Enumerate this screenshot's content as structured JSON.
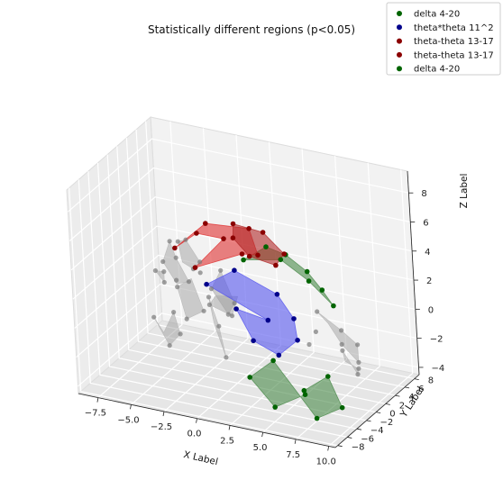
{
  "chart_data": {
    "type": "scatter",
    "title": "Statistically different regions (p<0.05)",
    "xlabel": "X Label",
    "ylabel": "Y Label",
    "zlabel": "Z Label",
    "xticks": [
      "−7.5",
      "−5.0",
      "−2.5",
      "0.0",
      "2.5",
      "5.0",
      "7.5",
      "10.0"
    ],
    "yticks": [
      "−8",
      "−6",
      "−4",
      "−2",
      "0",
      "2",
      "4",
      "6",
      "8"
    ],
    "zticks": [
      "−4",
      "−2",
      "0",
      "2",
      "4",
      "6",
      "8"
    ],
    "xlim": [
      -9,
      10.5
    ],
    "ylim": [
      -8.5,
      9
    ],
    "zlim": [
      -4.5,
      9.5
    ],
    "grid": true,
    "legend_position": "top-right",
    "series": [
      {
        "name": "delta 4-20",
        "color": "#006400",
        "fill": "#4a8a4a",
        "points": [
          [
            3.5,
            -6.5,
            6.5
          ],
          [
            4.7,
            -5.0,
            7.2
          ],
          [
            5.6,
            -3.5,
            6.4
          ],
          [
            6.6,
            -2.0,
            5.0
          ],
          [
            7.2,
            -0.8,
            3.5
          ],
          [
            7.5,
            0.5,
            2.1
          ],
          [
            6.3,
            -1.0,
            4.0
          ],
          [
            5.0,
            -3.0,
            5.8
          ]
        ]
      },
      {
        "name": "theta*theta 11^2",
        "color": "#00008b",
        "fill": "#5555ee",
        "points": [
          [
            -0.8,
            -3.0,
            3.0
          ],
          [
            1.2,
            -2.5,
            4.2
          ],
          [
            4.0,
            -1.5,
            2.8
          ],
          [
            4.6,
            0.0,
            0.8
          ],
          [
            4.4,
            1.0,
            -1.0
          ],
          [
            2.7,
            1.5,
            -2.5
          ],
          [
            1.2,
            0.5,
            -1.5
          ],
          [
            0.6,
            -1.0,
            1.0
          ],
          [
            2.8,
            -0.5,
            0.5
          ]
        ]
      },
      {
        "name": "theta-theta 13-17",
        "color": "#8b0000",
        "fill": "#e03030",
        "points": [
          [
            -2.5,
            -4.5,
            5.6
          ],
          [
            0.0,
            -4.6,
            7.8
          ],
          [
            2.7,
            -3.0,
            7.5
          ],
          [
            3.5,
            -3.6,
            6.0
          ],
          [
            1.6,
            -1.8,
            5.2
          ],
          [
            -1.6,
            -3.0,
            4.0
          ],
          [
            0.9,
            -3.5,
            6.6
          ],
          [
            -0.5,
            -5.2,
            7.2
          ]
        ]
      },
      {
        "name": "theta-theta 13-17",
        "color": "#8b0000",
        "fill": "#b02828",
        "points": [
          [
            1.5,
            -3.0,
            7.6
          ],
          [
            3.6,
            -2.6,
            7.3
          ],
          [
            4.6,
            -1.2,
            5.6
          ],
          [
            3.6,
            -0.4,
            4.4
          ],
          [
            2.0,
            -1.4,
            5.0
          ],
          [
            1.2,
            -2.4,
            6.4
          ]
        ]
      },
      {
        "name": "delta 4-20",
        "color": "#006400",
        "fill": "#4a8a4a",
        "points": [
          [
            1.3,
            3.8,
            -7.0
          ],
          [
            -0.2,
            3.0,
            -5.0
          ],
          [
            0.7,
            5.5,
            -4.4
          ],
          [
            4.0,
            5.0,
            -7.6
          ],
          [
            6.3,
            4.2,
            -6.2
          ],
          [
            5.8,
            3.0,
            -3.8
          ],
          [
            3.4,
            4.3,
            -5.6
          ],
          [
            3.0,
            5.5,
            -6.3
          ]
        ]
      }
    ],
    "gray_regions": [
      [
        [
          -7.5,
          3.5,
          -2.4
        ],
        [
          -6.8,
          4.5,
          -4.5
        ],
        [
          -6.2,
          5.2,
          -3.8
        ],
        [
          -6.0,
          3.6,
          -1.8
        ],
        [
          -7.0,
          4.0,
          -3.5
        ]
      ],
      [
        [
          -3.2,
          3.5,
          -0.2
        ],
        [
          -2.9,
          4.4,
          -2.4
        ],
        [
          -2.4,
          4.2,
          -4.4
        ],
        [
          -2.7,
          3.0,
          -1.8
        ]
      ],
      [
        [
          -5.6,
          1.0,
          2.5
        ],
        [
          -4.8,
          0.5,
          4.2
        ],
        [
          -4.0,
          -0.5,
          3.5
        ],
        [
          -4.0,
          1.8,
          1.2
        ],
        [
          -5.0,
          2.0,
          0.8
        ]
      ],
      [
        [
          -3.2,
          -2.0,
          5.2
        ],
        [
          -2.2,
          -3.0,
          5.8
        ],
        [
          -1.6,
          -2.0,
          4.1
        ],
        [
          -2.9,
          0.0,
          2.8
        ],
        [
          -3.4,
          -0.8,
          3.4
        ]
      ],
      [
        [
          -5.3,
          2.8,
          0.3
        ],
        [
          -4.4,
          2.0,
          -1.5
        ],
        [
          -3.6,
          3.4,
          -1.2
        ],
        [
          -4.5,
          3.6,
          0.8
        ]
      ],
      [
        [
          -1.8,
          0.5,
          1.5
        ],
        [
          -0.7,
          -0.3,
          3.2
        ],
        [
          0.3,
          -0.5,
          1.2
        ],
        [
          -1.0,
          1.5,
          -0.4
        ]
      ],
      [
        [
          -2.4,
          1.5,
          0.0
        ],
        [
          -1.1,
          2.5,
          -0.8
        ],
        [
          -0.4,
          2.0,
          0.8
        ],
        [
          -1.6,
          0.8,
          1.0
        ]
      ],
      [
        [
          6.8,
          -1.0,
          2.0
        ],
        [
          8.0,
          0.5,
          0.5
        ],
        [
          8.6,
          2.0,
          -0.8
        ],
        [
          8.3,
          2.8,
          -2.3
        ],
        [
          7.4,
          2.0,
          -1.0
        ],
        [
          7.2,
          0.0,
          1.0
        ]
      ],
      [
        [
          6.8,
          3.6,
          -2.0
        ],
        [
          7.8,
          3.8,
          -3.5
        ],
        [
          8.2,
          3.0,
          -2.8
        ],
        [
          7.2,
          3.0,
          -2.5
        ]
      ],
      [
        [
          -6.6,
          2.0,
          1.4
        ],
        [
          -6.2,
          2.6,
          0.5
        ],
        [
          -5.8,
          1.6,
          1.6
        ]
      ]
    ],
    "gray_points": [
      [
        -7.5,
        3.5,
        -2.4
      ],
      [
        -6.8,
        4.5,
        -4.5
      ],
      [
        -6.2,
        5.2,
        -3.8
      ],
      [
        -6.0,
        3.6,
        -1.8
      ],
      [
        -3.2,
        3.5,
        -0.2
      ],
      [
        -2.9,
        4.4,
        -2.4
      ],
      [
        -2.4,
        4.2,
        -4.4
      ],
      [
        -5.6,
        1.0,
        2.5
      ],
      [
        -4.8,
        0.5,
        4.2
      ],
      [
        -4.0,
        -0.5,
        3.5
      ],
      [
        -4.0,
        1.8,
        1.2
      ],
      [
        -3.2,
        -2.0,
        5.2
      ],
      [
        -2.2,
        -3.0,
        5.8
      ],
      [
        -1.6,
        -2.0,
        4.1
      ],
      [
        -2.9,
        0.0,
        2.8
      ],
      [
        -5.3,
        2.8,
        0.3
      ],
      [
        -4.4,
        2.0,
        -1.5
      ],
      [
        -3.6,
        3.4,
        -1.2
      ],
      [
        -1.8,
        0.5,
        1.5
      ],
      [
        -0.7,
        -0.3,
        3.2
      ],
      [
        0.3,
        -0.5,
        1.2
      ],
      [
        -1.0,
        1.5,
        -0.4
      ],
      [
        -2.4,
        1.5,
        0.0
      ],
      [
        -1.1,
        2.5,
        -0.8
      ],
      [
        6.8,
        -1.0,
        2.0
      ],
      [
        8.0,
        0.5,
        0.5
      ],
      [
        8.6,
        2.0,
        -0.8
      ],
      [
        8.3,
        2.8,
        -2.3
      ],
      [
        7.4,
        2.0,
        -1.0
      ],
      [
        6.8,
        3.6,
        -2.0
      ],
      [
        7.8,
        3.8,
        -3.5
      ],
      [
        8.2,
        3.0,
        -2.8
      ],
      [
        5.2,
        1.2,
        -1.2
      ],
      [
        6.0,
        0.6,
        0.0
      ],
      [
        -6.6,
        2.0,
        1.4
      ],
      [
        -6.2,
        2.6,
        0.5
      ],
      [
        -5.8,
        1.6,
        1.6
      ],
      [
        -3.8,
        -1.2,
        2.2
      ],
      [
        -2.0,
        -1.0,
        3.0
      ]
    ]
  }
}
